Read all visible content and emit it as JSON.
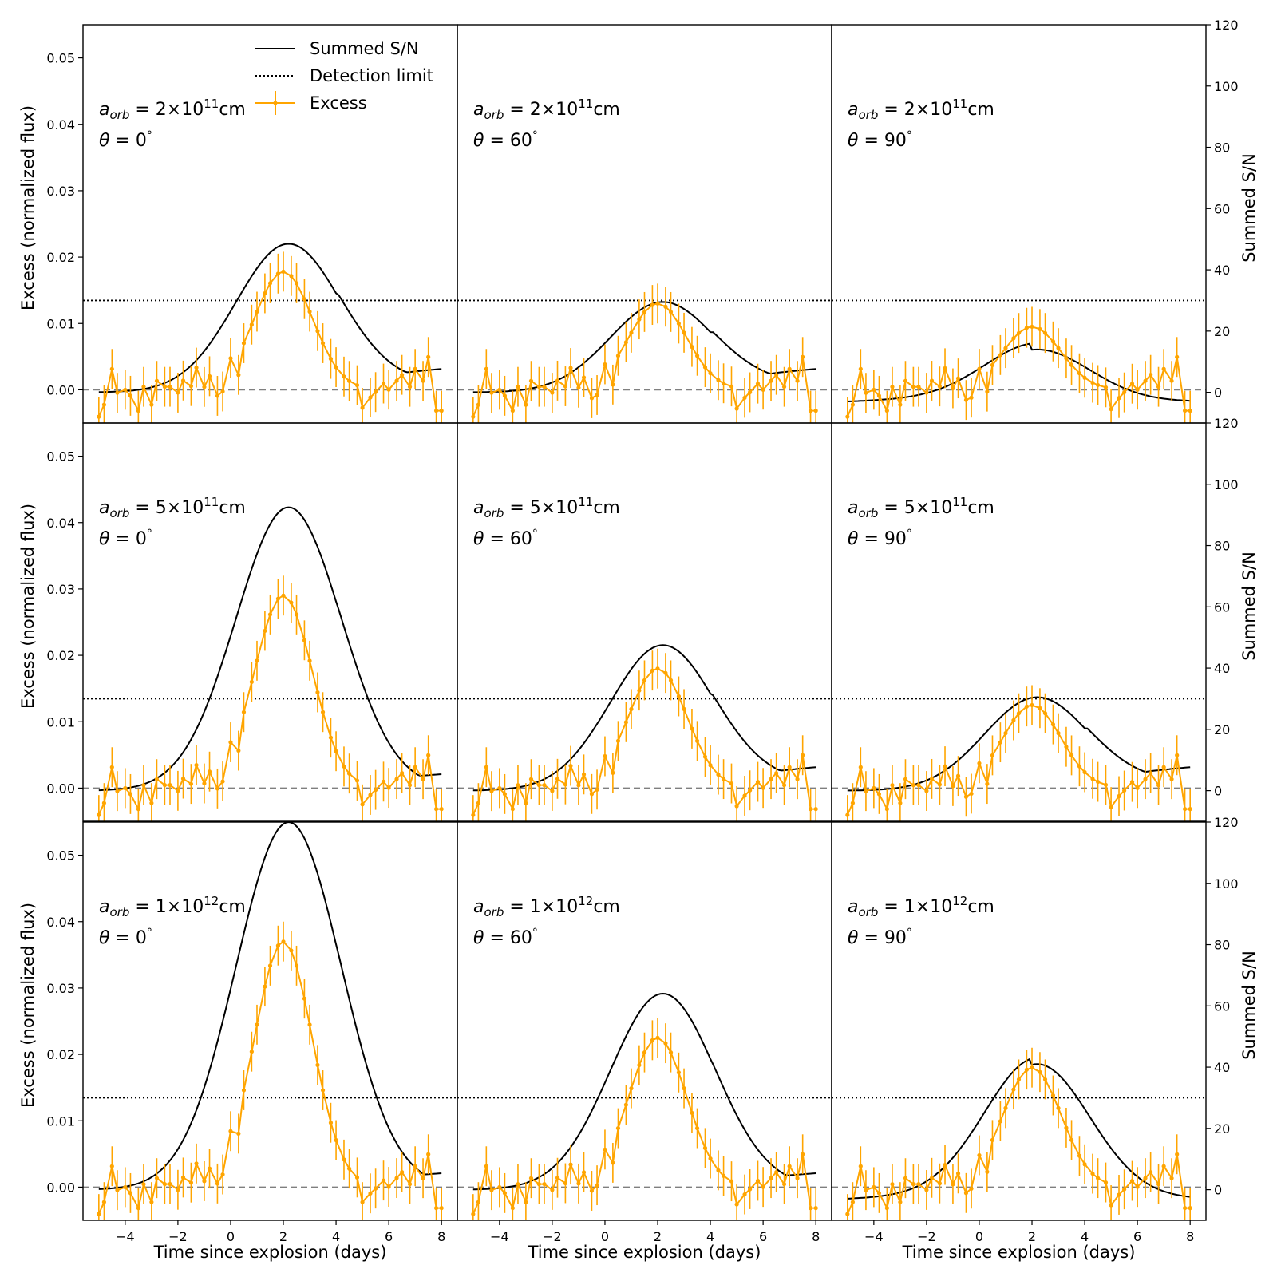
{
  "chart_data": {
    "type": "line",
    "title": "",
    "layout": "3x3 grid of panels with shared axes",
    "xlabel": "Time since explosion (days)",
    "ylabel_left": "Excess (normalized flux)",
    "ylabel_right": "Summed S/N",
    "xlim": [
      -5.6,
      8.6
    ],
    "ylim_left": [
      -0.005,
      0.055
    ],
    "ylim_right": [
      -10,
      120
    ],
    "xticks": [
      -4,
      -2,
      0,
      2,
      4,
      6,
      8
    ],
    "xtick_labels": [
      "−4",
      "−2",
      "0",
      "2",
      "4",
      "6",
      "8"
    ],
    "yticks_left": [
      0.0,
      0.01,
      0.02,
      0.03,
      0.04,
      0.05
    ],
    "ytick_labels_left": [
      "0.00",
      "0.01",
      "0.02",
      "0.03",
      "0.04",
      "0.05"
    ],
    "yticks_right": [
      0,
      20,
      40,
      60,
      80,
      100,
      120
    ],
    "ytick_labels_right": [
      "0",
      "20",
      "40",
      "60",
      "80",
      "100",
      "120"
    ],
    "legend": {
      "placement": "top-left of first panel",
      "entries": [
        "Summed S/N",
        "Detection limit",
        "Excess"
      ]
    },
    "colors": {
      "sn": "#000000",
      "detection": "#000000",
      "excess": "#FFA500",
      "zero": "#7f7f7f"
    },
    "detection_limit_sn": 30,
    "zero_line_excess": 0.0,
    "row_labels": [
      "2×10",
      "5×10",
      "1×10"
    ],
    "row_exponents": [
      "11",
      "11",
      "12"
    ],
    "column_labels": [
      "0",
      "60",
      "90"
    ],
    "sn_peaks": [
      [
        48.5,
        29.5,
        17.0
      ],
      [
        92.5,
        47.5,
        30.5
      ],
      [
        120.0,
        64.0,
        44.0
      ]
    ],
    "excess_times": [
      -5.0,
      -4.8,
      -4.5,
      -4.3,
      -4.0,
      -3.8,
      -3.5,
      -3.3,
      -3.0,
      -2.8,
      -2.5,
      -2.3,
      -2.0,
      -1.8,
      -1.5,
      -1.3,
      -1.0,
      -0.8,
      -0.5,
      -0.3,
      0.0,
      0.3,
      0.5,
      0.8,
      1.0,
      1.3,
      1.5,
      1.8,
      2.0,
      2.3,
      2.5,
      2.8,
      3.0,
      3.3,
      3.5,
      3.8,
      4.0,
      4.3,
      4.5,
      4.8,
      5.0,
      5.3,
      5.5,
      5.8,
      6.0,
      6.3,
      6.5,
      6.8,
      7.0,
      7.3,
      7.5,
      7.8,
      8.0
    ],
    "excess_noise": [
      -0.0045,
      -0.0025,
      0.0035,
      -0.0005,
      0.0,
      -0.001,
      -0.0035,
      0.0005,
      -0.0025,
      0.0015,
      0.0005,
      0.0005,
      -0.0005,
      0.0015,
      0.0005,
      0.0035,
      0.0,
      0.0015,
      -0.0025,
      -0.0025,
      0.0015,
      -0.0035,
      0.0,
      0.0,
      0.0,
      0.0,
      0.0,
      0.0,
      0.0,
      0.0,
      0.0,
      0.0,
      0.0,
      0.0,
      0.0,
      0.0,
      0.0,
      0.0,
      0.0,
      0.0,
      -0.0035,
      -0.0015,
      -0.0005,
      0.001,
      0.0,
      0.0015,
      0.0025,
      0.0005,
      0.0035,
      0.0015,
      0.0055,
      -0.0035,
      -0.0035
    ],
    "excess_errorbar": 0.003,
    "panels": [
      {
        "row": 0,
        "col": 0,
        "a_orb_mantissa": "2",
        "a_orb_exponent": "11",
        "theta_deg": 0,
        "excess_peak": 0.0178,
        "sn_peak": 48.5
      },
      {
        "row": 0,
        "col": 1,
        "a_orb_mantissa": "2",
        "a_orb_exponent": "11",
        "theta_deg": 60,
        "excess_peak": 0.013,
        "sn_peak": 29.5
      },
      {
        "row": 0,
        "col": 2,
        "a_orb_mantissa": "2",
        "a_orb_exponent": "11",
        "theta_deg": 90,
        "excess_peak": 0.0095,
        "sn_peak": 17.0
      },
      {
        "row": 1,
        "col": 0,
        "a_orb_mantissa": "5",
        "a_orb_exponent": "11",
        "theta_deg": 0,
        "excess_peak": 0.029,
        "sn_peak": 92.5
      },
      {
        "row": 1,
        "col": 1,
        "a_orb_mantissa": "5",
        "a_orb_exponent": "11",
        "theta_deg": 60,
        "excess_peak": 0.018,
        "sn_peak": 47.5
      },
      {
        "row": 1,
        "col": 2,
        "a_orb_mantissa": "5",
        "a_orb_exponent": "11",
        "theta_deg": 90,
        "excess_peak": 0.0125,
        "sn_peak": 30.5
      },
      {
        "row": 2,
        "col": 0,
        "a_orb_mantissa": "1",
        "a_orb_exponent": "12",
        "theta_deg": 0,
        "excess_peak": 0.037,
        "sn_peak": 120.0
      },
      {
        "row": 2,
        "col": 1,
        "a_orb_mantissa": "1",
        "a_orb_exponent": "12",
        "theta_deg": 60,
        "excess_peak": 0.0225,
        "sn_peak": 64.0
      },
      {
        "row": 2,
        "col": 2,
        "a_orb_mantissa": "1",
        "a_orb_exponent": "12",
        "theta_deg": 90,
        "excess_peak": 0.018,
        "sn_peak": 44.0
      }
    ]
  }
}
